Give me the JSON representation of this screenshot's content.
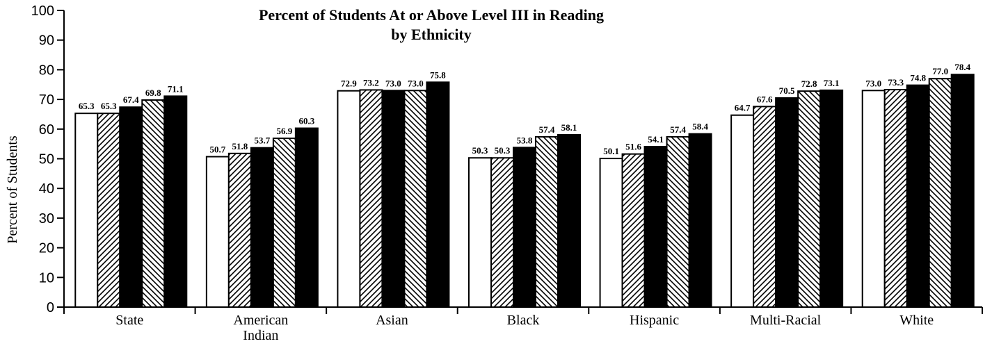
{
  "chart_data": {
    "type": "bar",
    "title": "Percent of Students At or Above Level III in Reading",
    "subtitle": "by Ethnicity",
    "xlabel": "",
    "ylabel": "Percent of Students",
    "ylim": [
      0,
      100
    ],
    "yticks": [
      "0",
      "10",
      "20",
      "30",
      "40",
      "50",
      "60",
      "70",
      "80",
      "90",
      "100"
    ],
    "grid": false,
    "legend": "none",
    "categories": [
      [
        "State"
      ],
      [
        "American",
        "Indian"
      ],
      [
        "Asian"
      ],
      [
        "Black"
      ],
      [
        "Hispanic"
      ],
      [
        "Multi-Racial"
      ],
      [
        "White"
      ]
    ],
    "series": [
      {
        "pattern": "white",
        "values": [
          65.3,
          50.7,
          72.9,
          50.3,
          50.1,
          64.7,
          73.0
        ]
      },
      {
        "pattern": "hatch-forward",
        "values": [
          65.3,
          51.8,
          73.2,
          50.3,
          51.6,
          67.6,
          73.3
        ]
      },
      {
        "pattern": "black",
        "values": [
          67.4,
          53.7,
          73.0,
          53.8,
          54.1,
          70.5,
          74.8
        ]
      },
      {
        "pattern": "hatch-back",
        "values": [
          69.8,
          56.9,
          73.0,
          57.4,
          57.4,
          72.8,
          77.0
        ]
      },
      {
        "pattern": "black",
        "values": [
          71.1,
          60.3,
          75.8,
          58.1,
          58.4,
          73.1,
          78.4
        ]
      }
    ],
    "value_labels": [
      [
        "65.3",
        "65.3",
        "67.4",
        "69.8",
        "71.1"
      ],
      [
        "50.7",
        "51.8",
        "53.7",
        "56.9",
        "60.3"
      ],
      [
        "72.9",
        "73.2",
        "73.0",
        "73.0",
        "75.8"
      ],
      [
        "50.3",
        "50.3",
        "53.8",
        "57.4",
        "58.1"
      ],
      [
        "50.1",
        "51.6",
        "54.1",
        "57.4",
        "58.4"
      ],
      [
        "64.7",
        "67.6",
        "70.5",
        "72.8",
        "73.1"
      ],
      [
        "73.0",
        "73.3",
        "74.8",
        "77.0",
        "78.4"
      ]
    ],
    "colors": {
      "ink": "#000000",
      "paper": "#ffffff"
    }
  }
}
